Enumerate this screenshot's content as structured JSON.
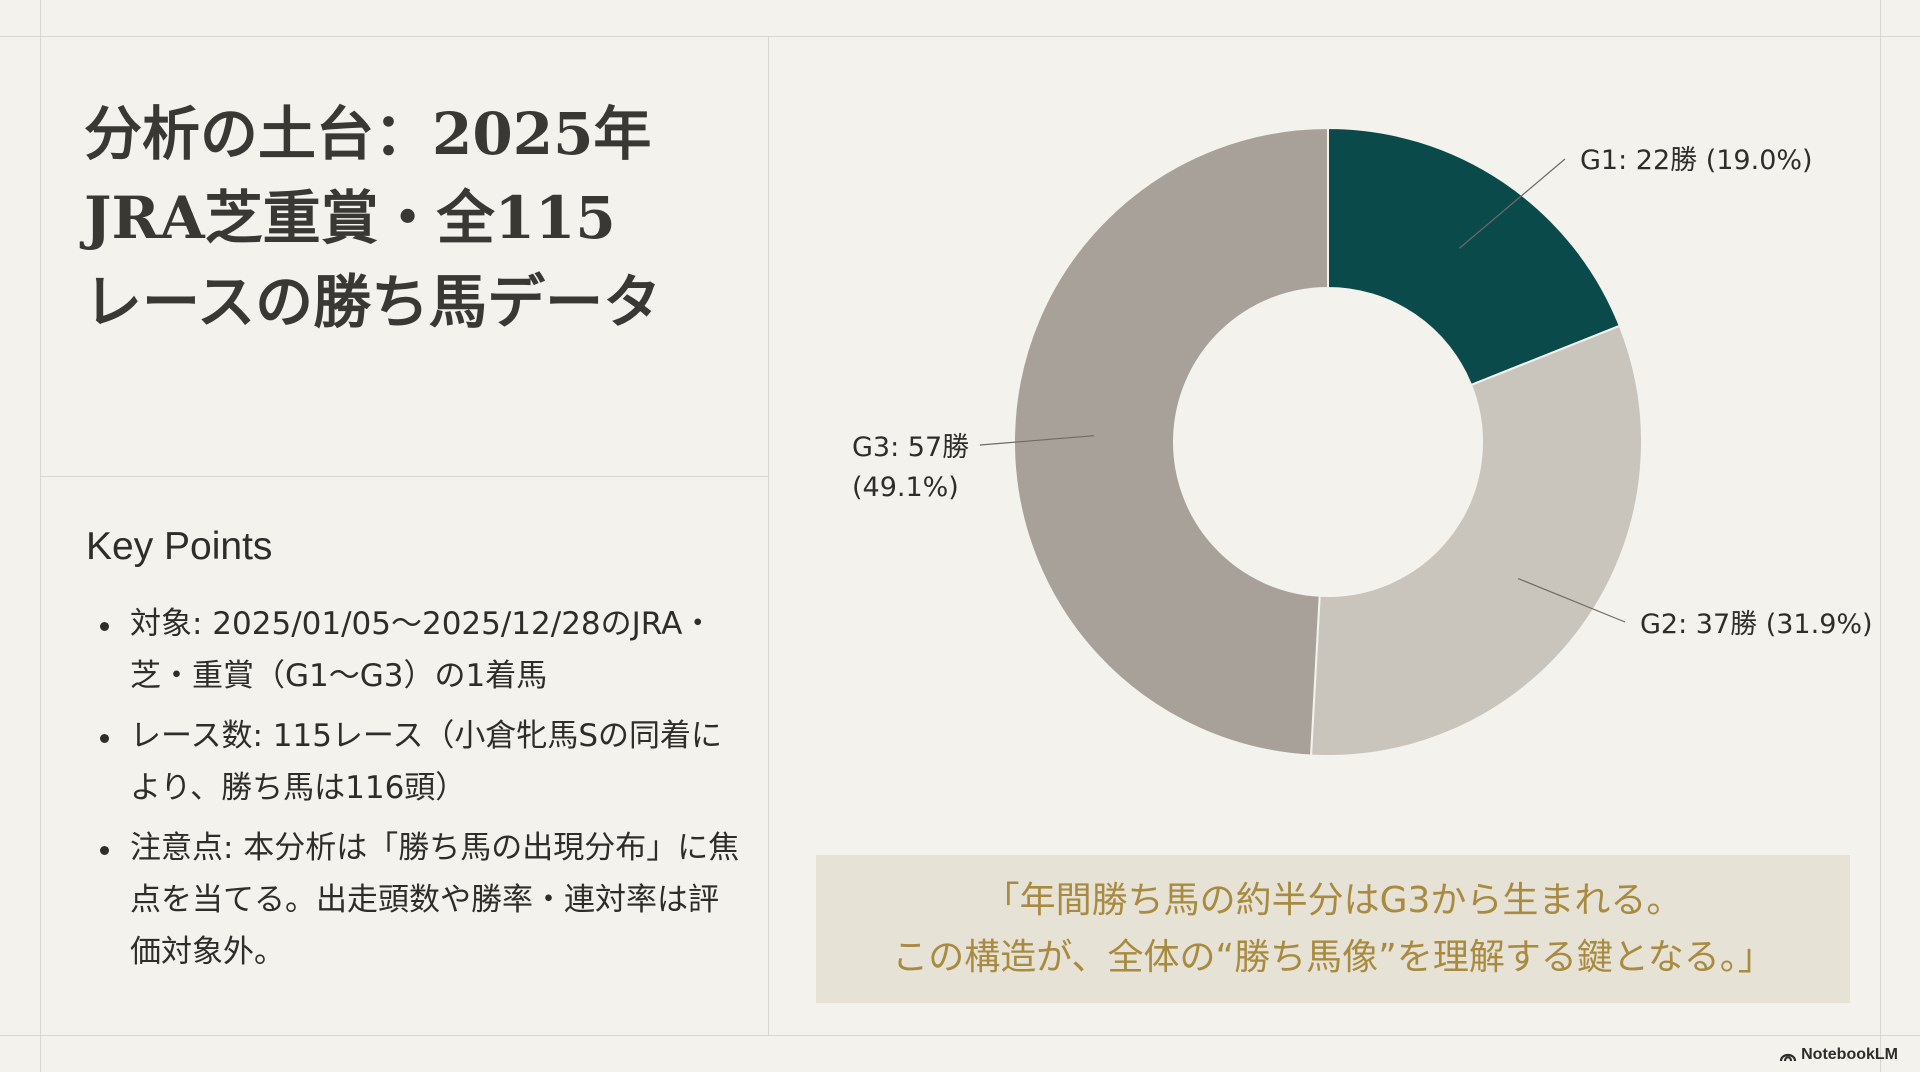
{
  "title": {
    "line1": "分析の土台：2025年",
    "line2": "JRA芝重賞・全115",
    "line3": "レースの勝ち馬データ"
  },
  "key_points": {
    "heading": "Key Points",
    "items": [
      "対象: 2025/01/05〜2025/12/28のJRA・芝・重賞（G1〜G3）の1着馬",
      "レース数: 115レース（小倉牝馬Sの同着により、勝ち馬は116頭）",
      "注意点: 本分析は「勝ち馬の出現分布」に焦点を当てる。出走頭数や勝率・連対率は評価対象外。"
    ]
  },
  "chart_data": {
    "type": "pie",
    "donut": true,
    "slices": [
      {
        "label": "G1",
        "value": 22,
        "percent": 19.0,
        "display": "G1: 22勝 (19.0%)",
        "color": "#0b4a4b"
      },
      {
        "label": "G2",
        "value": 37,
        "percent": 31.9,
        "display": "G2: 37勝 (31.9%)",
        "color": "#c9c5bd"
      },
      {
        "label": "G3",
        "value": 57,
        "percent": 49.1,
        "display_line1": "G3: 57勝",
        "display_line2": "(49.1%)",
        "color": "#a7a199"
      }
    ]
  },
  "quote": {
    "line1": "「年間勝ち馬の約半分はG3から生まれる。",
    "line2": "この構造が、全体の“勝ち馬像”を理解する鍵となる。」"
  },
  "brand": {
    "name": "NotebookLM",
    "icon": "notebooklm-logo-icon"
  }
}
